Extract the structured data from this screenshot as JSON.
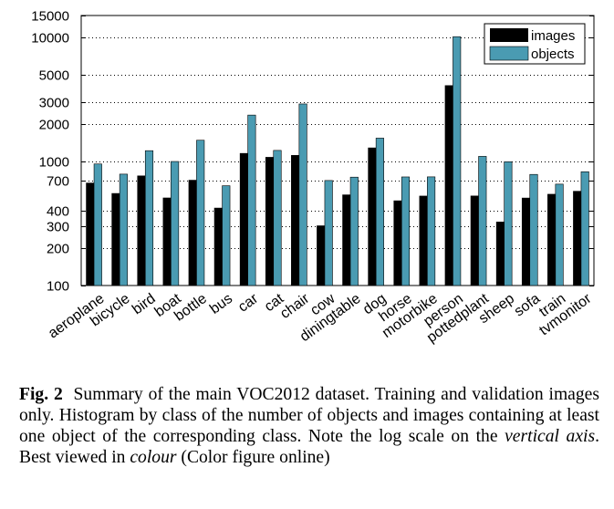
{
  "chart_data": {
    "type": "bar",
    "yscale": "log",
    "ylim": [
      100,
      15000
    ],
    "yticks": [
      100,
      200,
      300,
      400,
      700,
      1000,
      2000,
      3000,
      5000,
      10000,
      15000
    ],
    "grid": "horizontal dotted",
    "legend_position": "top-right",
    "categories": [
      "aeroplane",
      "bicycle",
      "bird",
      "boat",
      "bottle",
      "bus",
      "car",
      "cat",
      "chair",
      "cow",
      "diningtable",
      "dog",
      "horse",
      "motorbike",
      "person",
      "pottedplant",
      "sheep",
      "sofa",
      "train",
      "tvmonitor"
    ],
    "series": [
      {
        "name": "images",
        "color": "#000000",
        "values": [
          670,
          552,
          765,
          508,
          706,
          421,
          1161,
          1080,
          1119,
          303,
          538,
          1286,
          482,
          526,
          4087,
          527,
          325,
          507,
          544,
          575
        ]
      },
      {
        "name": "objects",
        "color": "#4a9bb2",
        "values": [
          954,
          790,
          1221,
          999,
          1482,
          637,
          2364,
          1227,
          2906,
          702,
          747,
          1541,
          750,
          751,
          10129,
          1099,
          994,
          786,
          656,
          826
        ]
      }
    ]
  },
  "caption": {
    "fig_label": "Fig. 2",
    "text_1": "Summary of the main VOC2012 dataset. Training and validation images only. Histogram by class of the number of objects and images containing at least one object of the corresponding class. Note the log scale on the ",
    "emph_1": "vertical axis",
    "text_2": ". Best viewed in ",
    "emph_2": "colour",
    "text_3": " (Color figure online)"
  }
}
